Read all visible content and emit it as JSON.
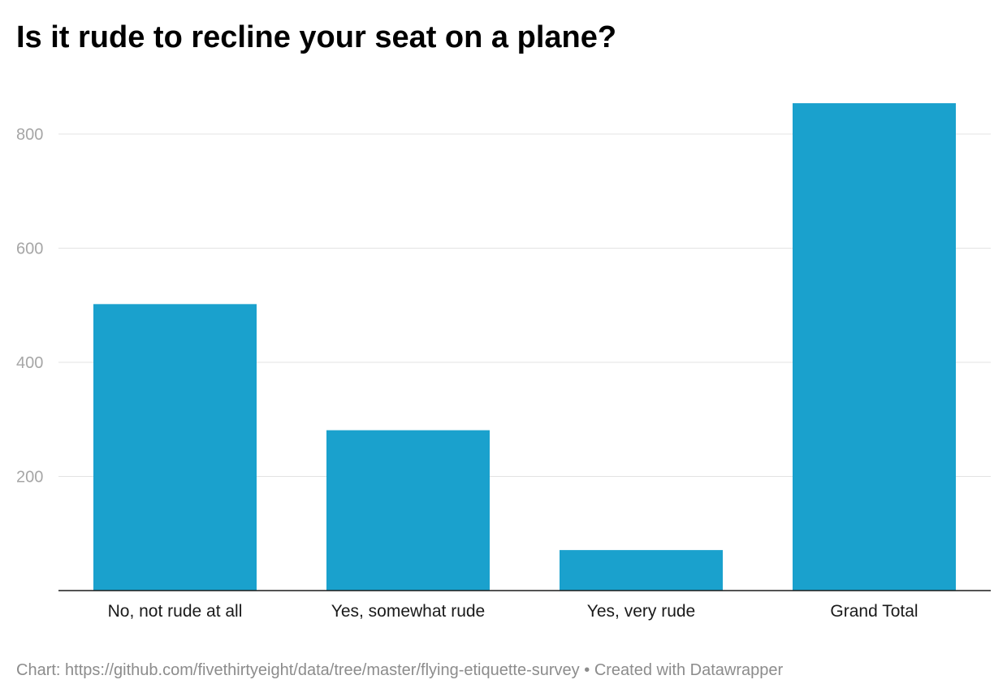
{
  "chart_data": {
    "type": "bar",
    "title": "Is it rude to recline your seat on a plane?",
    "categories": [
      "No, not rude at all",
      "Yes, somewhat rude",
      "Yes, very rude",
      "Grand Total"
    ],
    "values": [
      502,
      281,
      71,
      854
    ],
    "xlabel": "",
    "ylabel": "",
    "ylim": [
      0,
      860
    ],
    "yticks": [
      200,
      400,
      600,
      800
    ],
    "grid": true,
    "bar_color": "#1aa1cd"
  },
  "footer": {
    "source_prefix": "Chart:",
    "source_url": "https://github.com/fivethirtyeight/data/tree/master/flying-etiquette-survey",
    "separator": "•",
    "credit": "Created with Datawrapper"
  }
}
